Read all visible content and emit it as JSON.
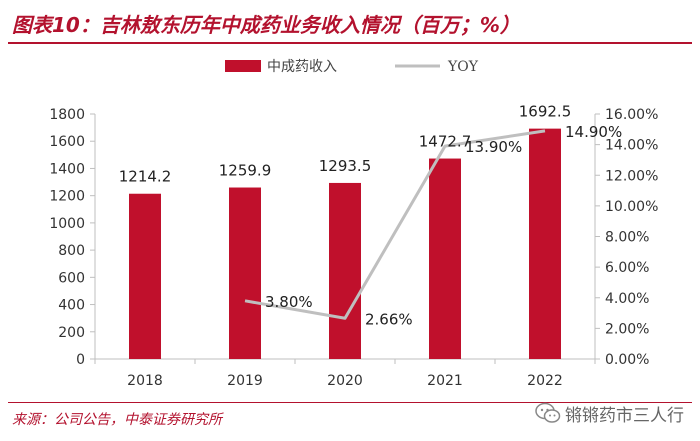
{
  "title": "图表10：吉林敖东历年中成药业务收入情况（百万；%）",
  "source": "来源：公司公告，中泰证券研究所",
  "watermark": "锵锵药市三人行",
  "colors": {
    "bar": "#c0102c",
    "line": "#bfbfbf",
    "accent": "#b3122e"
  },
  "chart_data": {
    "type": "bar",
    "categories": [
      "2018",
      "2019",
      "2020",
      "2021",
      "2022"
    ],
    "series": [
      {
        "name": "中成药收入",
        "type": "bar",
        "axis": "left",
        "values": [
          1214.2,
          1259.9,
          1293.5,
          1472.7,
          1692.5
        ],
        "labels": [
          "1214.2",
          "1259.9",
          "1293.5",
          "1472.7",
          "1692.5"
        ]
      },
      {
        "name": "YOY",
        "type": "line",
        "axis": "right",
        "values": [
          null,
          3.8,
          2.66,
          13.9,
          14.9
        ],
        "labels": [
          "",
          "3.80%",
          "2.66%",
          "13.90%",
          "14.90%"
        ]
      }
    ],
    "y_left": {
      "min": 0,
      "max": 1800,
      "step": 200,
      "ticks": [
        "0",
        "200",
        "400",
        "600",
        "800",
        "1000",
        "1200",
        "1400",
        "1600",
        "1800"
      ]
    },
    "y_right": {
      "min": 0,
      "max": 16,
      "step": 2,
      "ticks": [
        "0.00%",
        "2.00%",
        "4.00%",
        "6.00%",
        "8.00%",
        "10.00%",
        "12.00%",
        "14.00%",
        "16.00%"
      ]
    },
    "legend_position": "top",
    "grid": false
  }
}
